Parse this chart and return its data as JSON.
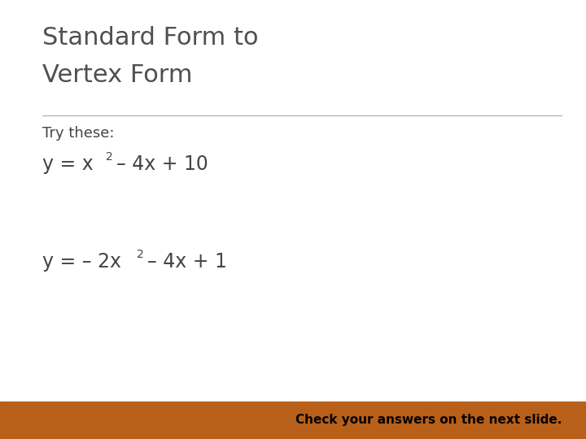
{
  "title_line1": "Standard Form to",
  "title_line2": "Vertex Form",
  "title_color": "#505050",
  "title_fontsize": 22,
  "background_color": "#ffffff",
  "divider_color": "#aaaaaa",
  "try_these_text": "Try these:",
  "try_these_color": "#444444",
  "try_these_fontsize": 13,
  "eq_color": "#444444",
  "eq_fontsize": 17,
  "eq_super_fontsize": 10,
  "footer_text": "Check your answers on the next slide.",
  "footer_bg_color": "#b8601a",
  "footer_text_color": "#000000",
  "footer_fontsize": 11
}
